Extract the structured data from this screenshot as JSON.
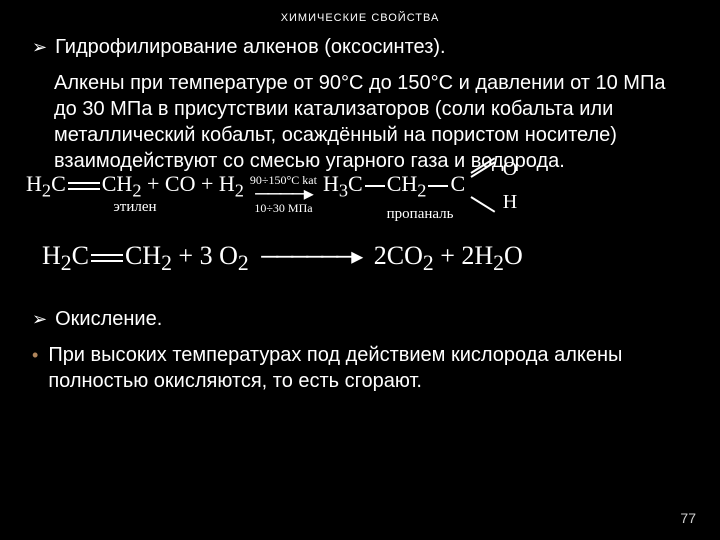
{
  "title": "ХИМИЧЕСКИЕ СВОЙСТВА",
  "section1": {
    "heading": "Гидрофилирование алкенов (оксосинтез).",
    "body": "Алкены при температуре от 90°С до 150°С и давлении от 10 МПа до 30 МПа в присутствии катализаторов (соли кобальта или металлический кобальт, осаждённый на пористом носителе) взаимодействуют со смесью угарного газа и водорода."
  },
  "reaction1": {
    "reagent_left_html": "H<sub>2</sub>C<span class='dbond'></span>CH<sub>2</sub> + CO + H<sub>2</sub>",
    "left_label": "этилен",
    "cond_top": "90÷150°C kat",
    "cond_bot": "10÷30 МПа",
    "product_stem_html": "H<sub>3</sub>C<span class='dash'></span>CH<sub>2</sub><span class='dash'></span>C",
    "o": "O",
    "h": "H",
    "product_label": "пропаналь"
  },
  "reaction2": {
    "left_html": "H<sub>2</sub>C<span class='dbond'></span>CH<sub>2</sub> + 3 O<sub>2</sub>",
    "right_html": "2CO<sub>2</sub> + 2H<sub>2</sub>O"
  },
  "section2": {
    "heading": "Окисление.",
    "body": "При высоких температурах под действием кислорода алкены полностью окисляются, то есть сгорают."
  },
  "pagenum": "77"
}
